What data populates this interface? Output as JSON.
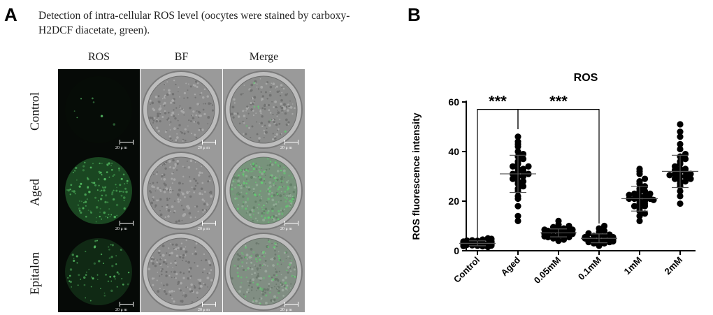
{
  "panel_a": {
    "letter": "A",
    "caption": "Detection of intra-cellular ROS level (oocytes were stained by carboxy-H2DCF diacetate, green).",
    "columns": [
      "ROS",
      "BF",
      "Merge"
    ],
    "rows": [
      "Control",
      "Aged",
      "Epitalon"
    ],
    "scale_bar_label": "20 μ m",
    "stain_color": "#3aa64a"
  },
  "panel_b": {
    "letter": "B"
  },
  "chart_data": {
    "type": "scatter",
    "title": "ROS",
    "ylabel": "ROS fluorescence intensity",
    "xlabel": "",
    "ylim": [
      0,
      60
    ],
    "yticks": [
      0,
      20,
      40,
      60
    ],
    "categories": [
      "Control",
      "Aged",
      "0.05mM",
      "0.1mM",
      "1mM",
      "2mM"
    ],
    "series": [
      {
        "values": [
          2.0,
          2.5,
          3.0,
          3.5,
          4.0,
          2.8,
          3.2,
          1.8,
          2.2,
          4.5,
          3.8,
          2.6,
          3.4,
          2.9,
          1.5,
          4.2,
          3.1,
          2.4,
          3.6,
          2.1,
          5.0,
          2.7,
          3.3,
          1.9,
          4.1,
          3.0,
          2.3,
          3.7,
          4.8,
          2.5
        ]
      },
      {
        "values": [
          12,
          14,
          18,
          21,
          22,
          24,
          25,
          26,
          27,
          28,
          28,
          29,
          30,
          30,
          31,
          31,
          32,
          32,
          33,
          33,
          34,
          34,
          35,
          36,
          37,
          38,
          39,
          40,
          42,
          43,
          44,
          46
        ]
      },
      {
        "values": [
          4,
          4.5,
          5,
          5.5,
          5.5,
          6,
          6,
          6,
          6.5,
          6.5,
          7,
          7,
          7,
          7,
          7.5,
          7.5,
          8,
          8,
          8,
          8.5,
          8.5,
          9,
          9,
          9.5,
          10,
          10.5,
          12,
          6.8,
          7.2,
          5.8
        ]
      },
      {
        "values": [
          2,
          2.5,
          3,
          3,
          3.5,
          3.5,
          4,
          4,
          4,
          4.5,
          4.5,
          4.5,
          5,
          5,
          5,
          5.5,
          5.5,
          6,
          6,
          6,
          6.5,
          7,
          7.5,
          8,
          9,
          10,
          4.2,
          3.8,
          5.2,
          4.8
        ]
      },
      {
        "values": [
          12,
          14,
          15,
          16,
          17,
          18,
          18,
          19,
          19,
          20,
          20,
          21,
          21,
          21,
          22,
          22,
          23,
          23,
          24,
          24,
          25,
          26,
          27,
          28,
          29,
          31,
          32,
          33,
          20.5,
          22.5
        ]
      },
      {
        "values": [
          19,
          22,
          24,
          26,
          27,
          28,
          28,
          29,
          29,
          30,
          30,
          31,
          31,
          32,
          32,
          33,
          33,
          34,
          35,
          36,
          37,
          38,
          39,
          41,
          43,
          46,
          48,
          51,
          30.5,
          32.5
        ]
      }
    ],
    "summary_lines": {
      "means": [
        3.0,
        31,
        7.2,
        5.0,
        21,
        32
      ],
      "sd": [
        1.0,
        7.5,
        1.6,
        1.8,
        5.0,
        6.5
      ]
    },
    "significance": [
      {
        "from": "Control",
        "to": "Aged",
        "label": "***",
        "y": 57
      },
      {
        "from": "Aged",
        "to": "0.1mM",
        "label": "***",
        "y": 57
      }
    ]
  }
}
